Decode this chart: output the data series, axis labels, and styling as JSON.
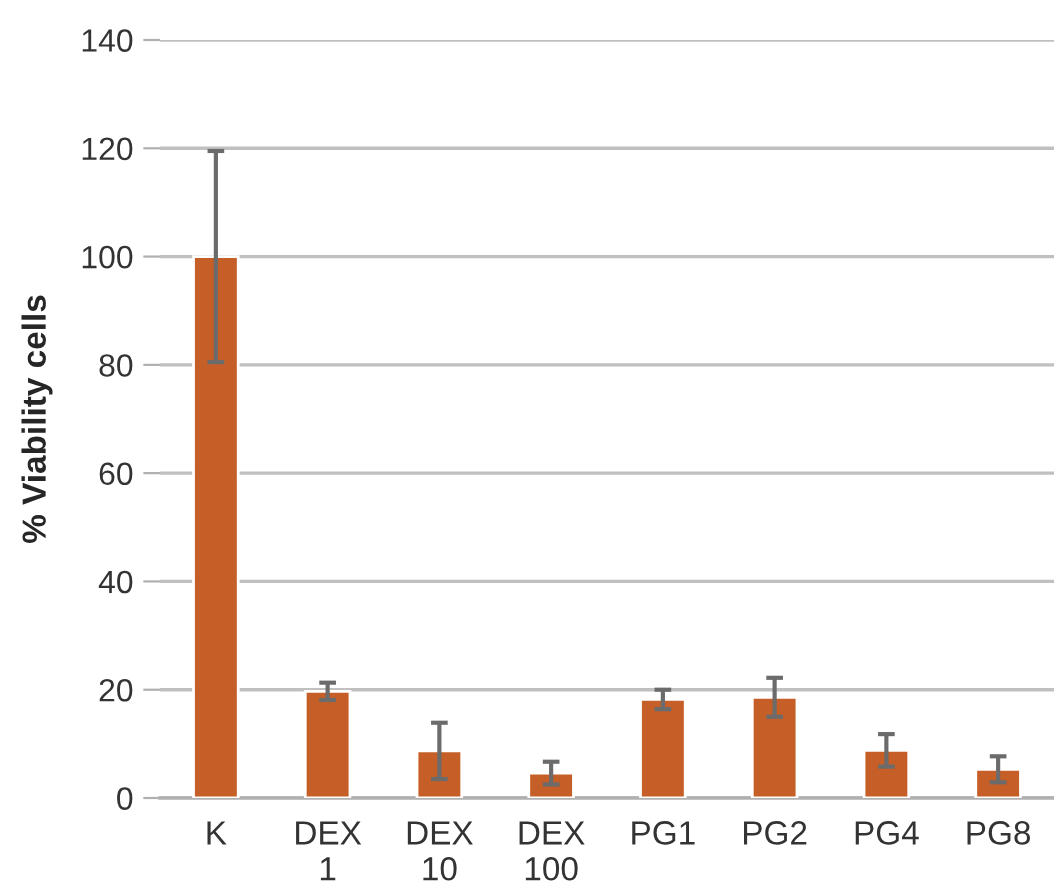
{
  "chart_data": {
    "type": "bar",
    "ylabel": "% Viability cells",
    "categories": [
      "K",
      "DEX\n1",
      "DEX\n10",
      "DEX\n100",
      "PG1",
      "PG2",
      "PG4",
      "PG8"
    ],
    "values": [
      100,
      19.7,
      8.7,
      4.6,
      18.2,
      18.6,
      8.8,
      5.3
    ],
    "errors": [
      19.5,
      1.6,
      5.2,
      2.1,
      1.8,
      3.6,
      3.0,
      2.4
    ],
    "color": "#c55f27",
    "ylim": [
      0,
      140
    ],
    "yticks": [
      0,
      20,
      40,
      60,
      80,
      100,
      120,
      140
    ],
    "grid": "y"
  }
}
